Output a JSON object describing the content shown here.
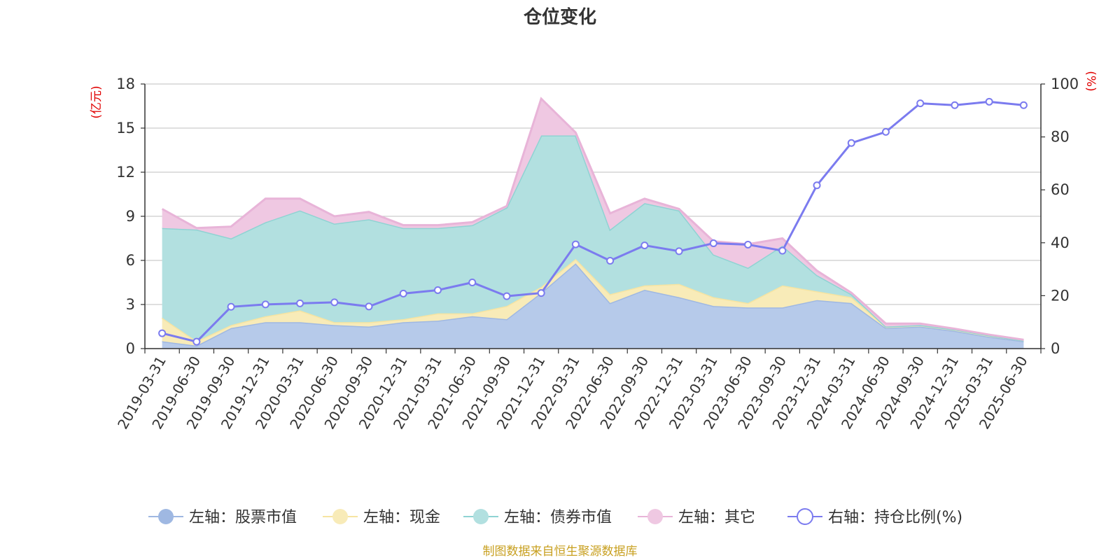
{
  "chart_data": {
    "type": "area",
    "title": "仓位变化",
    "left_axis": {
      "unit": "(亿元)",
      "ylim": [
        0,
        18
      ],
      "ticks": [
        0,
        3,
        6,
        9,
        12,
        15,
        18
      ]
    },
    "right_axis": {
      "unit": "(%)",
      "ylim": [
        0,
        100
      ],
      "ticks": [
        0,
        20,
        40,
        60,
        80,
        100
      ]
    },
    "grid": true,
    "legend_position": "bottom",
    "x": [
      "2019-03-31",
      "2019-06-30",
      "2019-09-30",
      "2019-12-31",
      "2020-03-31",
      "2020-06-30",
      "2020-09-30",
      "2020-12-31",
      "2021-03-31",
      "2021-06-30",
      "2021-09-30",
      "2021-12-31",
      "2022-03-31",
      "2022-06-30",
      "2022-09-30",
      "2022-12-31",
      "2023-03-31",
      "2023-06-30",
      "2023-09-30",
      "2023-12-31",
      "2024-03-31",
      "2024-06-30",
      "2024-09-30",
      "2024-12-31",
      "2025-03-31",
      "2025-06-30"
    ],
    "series": [
      {
        "name": "左轴：股票市值",
        "axis": "left",
        "stack": true,
        "color": "#9fb8e2",
        "fill": "#b6caea",
        "values": [
          0.5,
          0.2,
          1.4,
          1.8,
          1.8,
          1.6,
          1.5,
          1.8,
          1.9,
          2.2,
          2.0,
          3.8,
          5.8,
          3.1,
          4.0,
          3.5,
          2.9,
          2.8,
          2.8,
          3.3,
          3.1,
          1.4,
          1.5,
          1.2,
          0.8,
          0.5
        ]
      },
      {
        "name": "左轴：现金",
        "axis": "left",
        "stack": true,
        "color": "#f6e4a2",
        "fill": "#f8ebb8",
        "values": [
          1.6,
          0.3,
          0.2,
          0.4,
          0.8,
          0.2,
          0.3,
          0.2,
          0.5,
          0.2,
          0.9,
          0.4,
          0.3,
          0.6,
          0.3,
          0.9,
          0.6,
          0.3,
          1.5,
          0.6,
          0.4,
          0.1,
          0.1,
          0.1,
          0.1,
          0.05
        ]
      },
      {
        "name": "左轴：债券市值",
        "axis": "left",
        "stack": true,
        "color": "#8fd3d3",
        "fill": "#b2e0e0",
        "values": [
          6.1,
          7.6,
          5.9,
          6.4,
          6.8,
          6.7,
          7.0,
          6.2,
          5.8,
          6.0,
          6.7,
          10.3,
          8.4,
          4.4,
          5.6,
          5.0,
          2.9,
          2.4,
          2.7,
          1.1,
          0.2,
          0,
          0,
          0,
          0,
          0
        ]
      },
      {
        "name": "左轴：其它",
        "axis": "left",
        "stack": true,
        "color": "#e8b4d8",
        "fill": "#efc8e2",
        "values": [
          1.3,
          0.1,
          0.8,
          1.6,
          0.8,
          0.5,
          0.5,
          0.2,
          0.2,
          0.2,
          0.1,
          2.5,
          0.2,
          1.1,
          0.3,
          0.1,
          0.9,
          1.6,
          0.5,
          0.3,
          0.1,
          0.2,
          0.1,
          0.05,
          0.05,
          0.05
        ]
      },
      {
        "name": "右轴：持仓比例(%)",
        "axis": "right",
        "stack": false,
        "type": "line",
        "color": "#7b7bef",
        "values": [
          5.8,
          2.6,
          15.8,
          16.7,
          17.1,
          17.5,
          15.9,
          20.8,
          22.1,
          25.0,
          19.8,
          21.0,
          39.4,
          33.2,
          39.0,
          36.8,
          39.8,
          39.3,
          37.0,
          61.7,
          77.7,
          81.9,
          92.7,
          92.0,
          93.3,
          92.0
        ]
      }
    ]
  },
  "source_note": "制图数据来自恒生聚源数据库"
}
